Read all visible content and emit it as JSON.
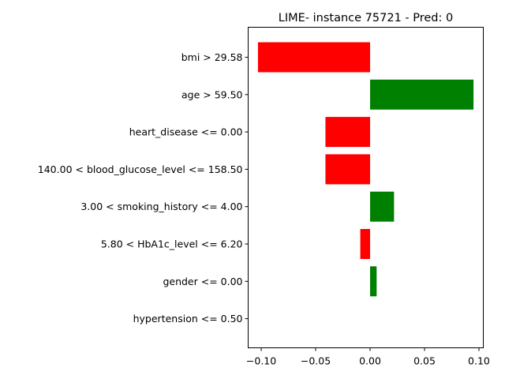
{
  "chart_data": {
    "type": "bar",
    "orientation": "horizontal",
    "title": "LIME- instance 75721 - Pred: 0",
    "xlabel": "",
    "ylabel": "",
    "categories": [
      "bmi > 29.58",
      "age > 59.50",
      "heart_disease <= 0.00",
      "140.00 < blood_glucose_level <= 158.50",
      "3.00 < smoking_history <= 4.00",
      "5.80 < HbA1c_level <= 6.20",
      "gender <= 0.00",
      "hypertension <= 0.50"
    ],
    "values": [
      -0.103,
      0.095,
      -0.041,
      -0.041,
      0.022,
      -0.009,
      0.006,
      0.0
    ],
    "xlim": [
      -0.112,
      0.104
    ],
    "xticks": [
      -0.1,
      -0.05,
      0.0,
      0.05,
      0.1
    ],
    "xtick_labels": [
      "−0.10",
      "−0.05",
      "0.00",
      "0.05",
      "0.10"
    ],
    "grid": false,
    "colors": {
      "positive": "#008000",
      "negative": "#ff0000"
    }
  }
}
